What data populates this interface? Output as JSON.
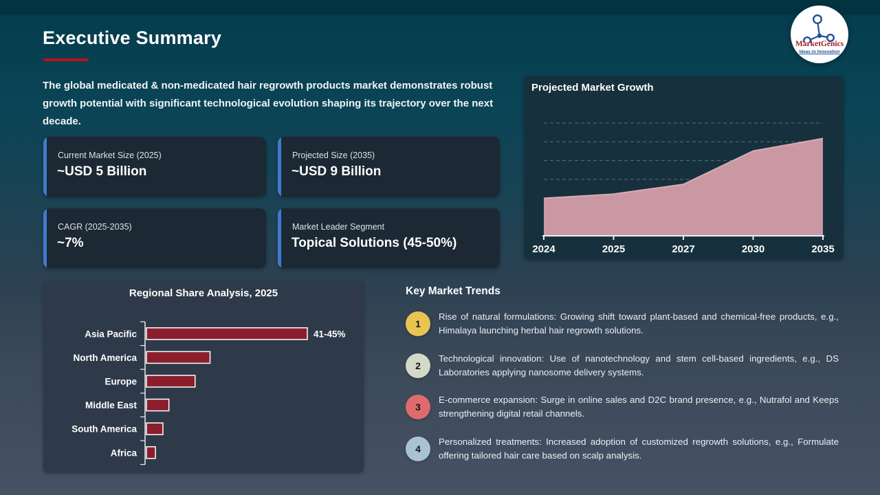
{
  "page": {
    "title": "Executive Summary"
  },
  "logo": {
    "name": "MarketGenics",
    "tagline": "Ideas to Innovation"
  },
  "intro": "The global medicated & non-medicated hair regrowth products market demonstrates robust growth potential with significant technological evolution shaping its trajectory over the next decade.",
  "stats": [
    {
      "label": "Current Market Size (2025)",
      "value": "~USD 5 Billion"
    },
    {
      "label": "Projected Size (2035)",
      "value": "~USD 9 Billion"
    },
    {
      "label": "CAGR (2025-2035)",
      "value": "~7%"
    },
    {
      "label": "Market Leader Segment",
      "value": "Topical Solutions (45-50%)"
    }
  ],
  "trends": {
    "heading": "Key Market Trends",
    "items": [
      {
        "number": "1",
        "color": "#eac453",
        "text": "Rise of natural formulations: Growing shift toward plant-based and chemical-free products, e.g., Himalaya launching herbal hair regrowth solutions."
      },
      {
        "number": "2",
        "color": "#d3d9c6",
        "text": "Technological innovation: Use of nanotechnology and stem cell-based ingredients, e.g., DS Laboratories applying nanosome delivery systems."
      },
      {
        "number": "3",
        "color": "#dd6b6d",
        "text": "E-commerce expansion: Surge in online sales and D2C brand presence, e.g., Nutrafol and Keeps strengthening digital retail channels."
      },
      {
        "number": "4",
        "color": "#a9c3d4",
        "text": "Personalized treatments: Increased adoption of customized regrowth solutions, e.g., Formulate offering tailored hair care based on scalp analysis."
      }
    ]
  },
  "chart_data": [
    {
      "type": "area",
      "title": "Projected Market Growth",
      "x": [
        "2024",
        "2025",
        "2027",
        "2030",
        "2035"
      ],
      "values": [
        4.7,
        5,
        5.7,
        8.1,
        9
      ],
      "ylim": [
        2,
        10.5
      ],
      "grid": "dashed-horizontal",
      "legend": "none",
      "fill_color": "#c998a3",
      "line_color": "#d9abb3"
    },
    {
      "type": "bar",
      "orientation": "horizontal",
      "title": "Regional Share Analysis, 2025",
      "categories": [
        "Asia Pacific",
        "North America",
        "Europe",
        "Middle East",
        "South America",
        "Africa"
      ],
      "values": [
        43,
        17,
        13,
        6,
        4.4,
        2.4
      ],
      "data_labels": [
        "41-45%",
        "",
        "",
        "",
        "",
        ""
      ],
      "xlim": [
        0,
        47
      ],
      "bar_color": "#8b1e2d",
      "bar_border": "#ffffff"
    }
  ],
  "colors": {
    "accent_red": "#b91218",
    "card_accent_blue": "#3f7ad0"
  }
}
